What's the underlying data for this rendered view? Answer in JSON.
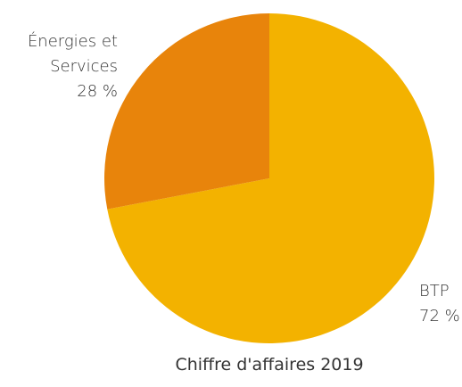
{
  "chart_data": {
    "type": "pie",
    "title": "Chiffre d'affaires 2019",
    "categories": [
      "BTP",
      "Énergies et Services"
    ],
    "values": [
      72,
      28
    ],
    "value_labels": [
      "72 %",
      "28 %"
    ],
    "colors": [
      "#f3b200",
      "#e8840b"
    ]
  }
}
